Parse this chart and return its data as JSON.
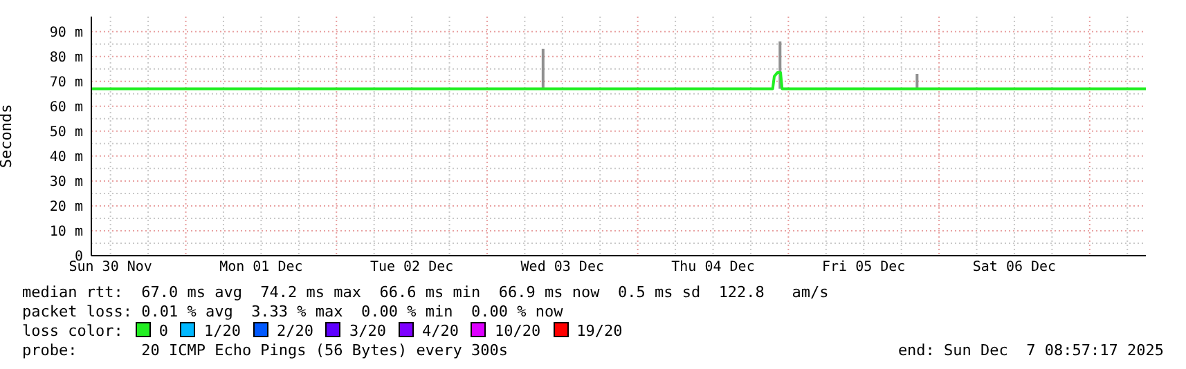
{
  "chart_data": {
    "type": "line",
    "ylabel": "Seconds",
    "legend_title": "loss color:",
    "legend": "bottom",
    "grid": true,
    "marker": "none",
    "line_style": "solid",
    "xlim": [
      "2025-11-30T08:57",
      "2025-12-07T08:57"
    ],
    "xticks": [
      {
        "value": "2025-11-30T12:00",
        "label": "Sun 30 Nov"
      },
      {
        "value": "2025-11-30T18:00",
        "label": null
      },
      {
        "value": "2025-12-01T00:00",
        "label": null
      },
      {
        "value": "2025-12-01T06:00",
        "label": null
      },
      {
        "value": "2025-12-01T12:00",
        "label": "Mon 01 Dec"
      },
      {
        "value": "2025-12-01T18:00",
        "label": null
      },
      {
        "value": "2025-12-02T00:00",
        "label": null
      },
      {
        "value": "2025-12-02T06:00",
        "label": null
      },
      {
        "value": "2025-12-02T12:00",
        "label": "Tue 02 Dec"
      },
      {
        "value": "2025-12-02T18:00",
        "label": null
      },
      {
        "value": "2025-12-03T00:00",
        "label": null
      },
      {
        "value": "2025-12-03T06:00",
        "label": null
      },
      {
        "value": "2025-12-03T12:00",
        "label": "Wed 03 Dec"
      },
      {
        "value": "2025-12-03T18:00",
        "label": null
      },
      {
        "value": "2025-12-04T00:00",
        "label": null
      },
      {
        "value": "2025-12-04T06:00",
        "label": null
      },
      {
        "value": "2025-12-04T12:00",
        "label": "Thu 04 Dec"
      },
      {
        "value": "2025-12-04T18:00",
        "label": null
      },
      {
        "value": "2025-12-05T00:00",
        "label": null
      },
      {
        "value": "2025-12-05T06:00",
        "label": null
      },
      {
        "value": "2025-12-05T12:00",
        "label": "Fri 05 Dec"
      },
      {
        "value": "2025-12-05T18:00",
        "label": null
      },
      {
        "value": "2025-12-06T00:00",
        "label": null
      },
      {
        "value": "2025-12-06T06:00",
        "label": null
      },
      {
        "value": "2025-12-06T12:00",
        "label": "Sat 06 Dec"
      },
      {
        "value": "2025-12-06T18:00",
        "label": null
      },
      {
        "value": "2025-12-07T00:00",
        "label": null
      },
      {
        "value": "2025-12-07T06:00",
        "label": null
      }
    ],
    "ylim": [
      0,
      96
    ],
    "yticks": [
      0,
      {
        "value": 5,
        "label": null
      },
      {
        "value": 10,
        "label": "10 m"
      },
      {
        "value": 15,
        "label": null
      },
      {
        "value": 20,
        "label": "20 m"
      },
      {
        "value": 25,
        "label": null
      },
      {
        "value": 30,
        "label": "30 m"
      },
      {
        "value": 35,
        "label": null
      },
      {
        "value": 40,
        "label": "40 m"
      },
      {
        "value": 45,
        "label": null
      },
      {
        "value": 50,
        "label": "50 m"
      },
      {
        "value": 55,
        "label": null
      },
      {
        "value": 60,
        "label": "60 m"
      },
      {
        "value": 65,
        "label": null
      },
      {
        "value": 70,
        "label": "70 m"
      },
      {
        "value": 75,
        "label": null
      },
      {
        "value": 80,
        "label": "80 m"
      },
      {
        "value": 85,
        "label": null
      },
      {
        "value": 90,
        "label": "90 m"
      }
    ],
    "series": [
      {
        "color": "#909090",
        "x": [
          "2025-12-03T08:55",
          "2025-12-03T08:55",
          "2025-12-04T00:00",
          "2025-12-04T22:40",
          "2025-12-04T22:40",
          "2025-12-05T00:00",
          "2025-12-05T20:30",
          "2025-12-05T20:30"
        ],
        "values": [
          67,
          83,
          null,
          67,
          86,
          null,
          67,
          73
        ]
      },
      {
        "name": "0",
        "color": "#22ee22",
        "x": [
          "2025-11-30T08:57",
          "2025-12-04T21:30",
          "2025-12-04T21:45",
          "2025-12-04T22:15",
          "2025-12-04T22:45",
          "2025-12-04T23:00",
          "2025-12-07T08:57"
        ],
        "values": [
          67,
          67,
          72,
          73.5,
          73.5,
          67,
          67
        ]
      },
      {
        "name": "1/20",
        "color": "#00b8ff"
      },
      {
        "name": "2/20",
        "color": "#0059ff"
      },
      {
        "name": "3/20",
        "color": "#5e00ff"
      },
      {
        "name": "4/20",
        "color": "#7e00ff"
      },
      {
        "name": "10/20",
        "color": "#dd00ff"
      },
      {
        "name": "19/20",
        "color": "#ff0000"
      }
    ],
    "annotations": [
      "median rtt:  67.0 ms avg  74.2 ms max  66.6 ms min  66.9 ms now  0.5 ms sd  122.8   am/s",
      "packet loss: 0.01 % avg  3.33 % max  0.00 % min  0.00 % now",
      "probe:       20 ICMP Echo Pings (56 Bytes) every 300s",
      "end: Sun Dec  7 08:57:17 2025"
    ]
  }
}
